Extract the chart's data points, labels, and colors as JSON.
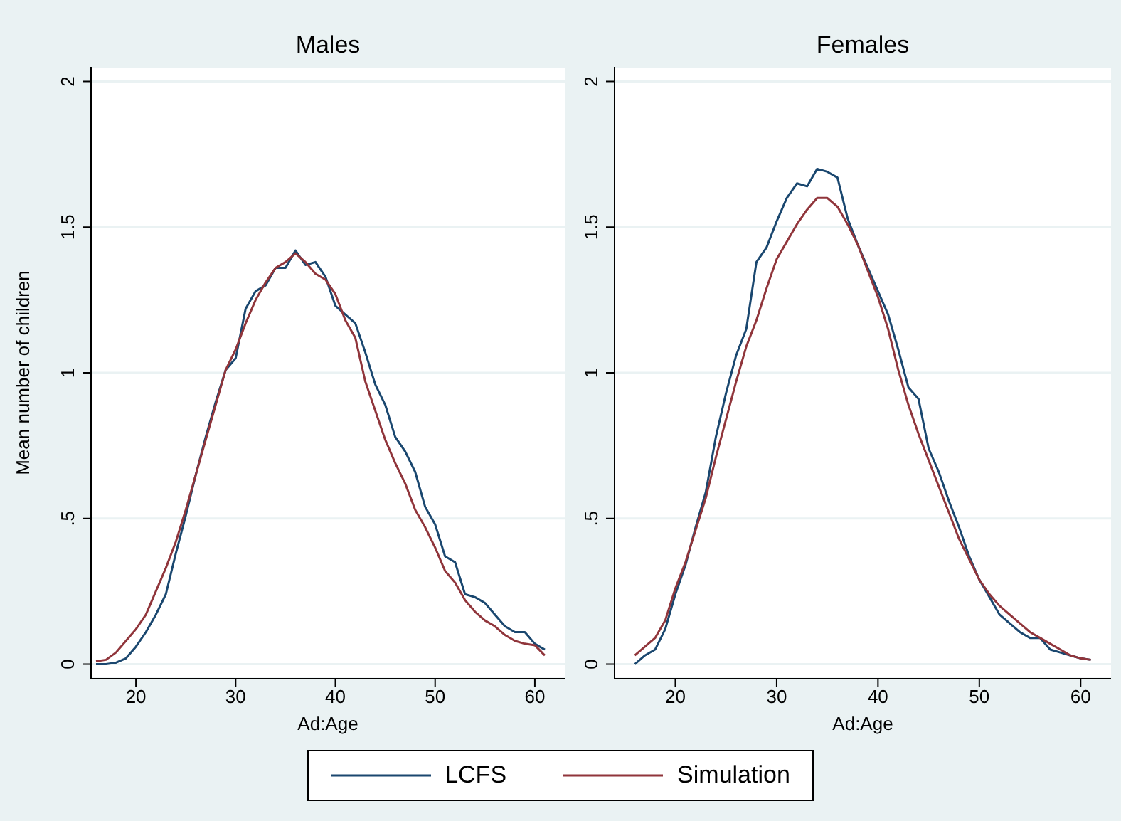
{
  "chart_data": [
    {
      "type": "line",
      "title": "Males",
      "xlabel": "Ad:Age",
      "ylabel": "Mean number of children",
      "x": [
        16,
        17,
        18,
        19,
        20,
        21,
        22,
        23,
        24,
        25,
        26,
        27,
        28,
        29,
        30,
        31,
        32,
        33,
        34,
        35,
        36,
        37,
        38,
        39,
        40,
        41,
        42,
        43,
        44,
        45,
        46,
        47,
        48,
        49,
        50,
        51,
        52,
        53,
        54,
        55,
        56,
        57,
        58,
        59,
        60,
        61
      ],
      "series": [
        {
          "name": "LCFS",
          "color": "#1a476f",
          "values": [
            0.0,
            0.0,
            0.005,
            0.02,
            0.06,
            0.11,
            0.17,
            0.24,
            0.38,
            0.51,
            0.65,
            0.78,
            0.9,
            1.01,
            1.05,
            1.22,
            1.28,
            1.3,
            1.36,
            1.36,
            1.42,
            1.37,
            1.38,
            1.33,
            1.23,
            1.2,
            1.17,
            1.07,
            0.96,
            0.89,
            0.78,
            0.73,
            0.66,
            0.54,
            0.48,
            0.37,
            0.35,
            0.24,
            0.23,
            0.21,
            0.17,
            0.13,
            0.11,
            0.11,
            0.07,
            0.05
          ]
        },
        {
          "name": "Simulation",
          "color": "#90353b",
          "values": [
            0.01,
            0.015,
            0.04,
            0.08,
            0.12,
            0.17,
            0.25,
            0.33,
            0.42,
            0.53,
            0.65,
            0.77,
            0.89,
            1.01,
            1.08,
            1.17,
            1.25,
            1.31,
            1.36,
            1.38,
            1.41,
            1.38,
            1.34,
            1.32,
            1.27,
            1.18,
            1.12,
            0.97,
            0.87,
            0.77,
            0.69,
            0.62,
            0.53,
            0.47,
            0.4,
            0.32,
            0.28,
            0.22,
            0.18,
            0.15,
            0.13,
            0.1,
            0.08,
            0.07,
            0.065,
            0.03
          ]
        }
      ],
      "xlim": [
        15.5,
        63
      ],
      "xticks": [
        20,
        30,
        40,
        50,
        60
      ],
      "ylim": [
        -0.05,
        2.05
      ],
      "yticks": [
        0,
        {
          "value": 0.5,
          "label": ".5"
        },
        1,
        1.5,
        2
      ],
      "grid": "y",
      "marker": "none",
      "line_style": "solid",
      "legend": "bottom"
    },
    {
      "type": "line",
      "title": "Females",
      "xlabel": "Ad:Age",
      "x": [
        16,
        17,
        18,
        19,
        20,
        21,
        22,
        23,
        24,
        25,
        26,
        27,
        28,
        29,
        30,
        31,
        32,
        33,
        34,
        35,
        36,
        37,
        38,
        39,
        40,
        41,
        42,
        43,
        44,
        45,
        46,
        47,
        48,
        49,
        50,
        51,
        52,
        53,
        54,
        55,
        56,
        57,
        58,
        59,
        60,
        61
      ],
      "series": [
        {
          "color": "#1a476f",
          "values": [
            0.0,
            0.03,
            0.05,
            0.12,
            0.24,
            0.34,
            0.47,
            0.59,
            0.78,
            0.93,
            1.06,
            1.15,
            1.38,
            1.43,
            1.52,
            1.6,
            1.65,
            1.64,
            1.7,
            1.69,
            1.67,
            1.53,
            1.44,
            1.36,
            1.28,
            1.2,
            1.08,
            0.95,
            0.91,
            0.74,
            0.66,
            0.56,
            0.47,
            0.37,
            0.29,
            0.23,
            0.17,
            0.14,
            0.11,
            0.09,
            0.09,
            0.05,
            0.04,
            0.03,
            0.02,
            0.015
          ]
        },
        {
          "color": "#90353b",
          "values": [
            0.03,
            0.06,
            0.09,
            0.15,
            0.26,
            0.35,
            0.46,
            0.57,
            0.71,
            0.84,
            0.97,
            1.09,
            1.18,
            1.29,
            1.39,
            1.45,
            1.51,
            1.56,
            1.6,
            1.6,
            1.57,
            1.51,
            1.44,
            1.35,
            1.26,
            1.15,
            1.01,
            0.89,
            0.79,
            0.7,
            0.61,
            0.52,
            0.43,
            0.36,
            0.29,
            0.24,
            0.2,
            0.17,
            0.14,
            0.11,
            0.09,
            0.07,
            0.05,
            0.03,
            0.02,
            0.015
          ]
        }
      ],
      "xlim": [
        14,
        63
      ],
      "xticks": [
        20,
        30,
        40,
        50,
        60
      ],
      "ylim": [
        -0.05,
        2.05
      ],
      "yticks": [
        0,
        {
          "value": 0.5,
          "label": ".5"
        },
        1,
        1.5,
        2
      ],
      "grid": "y",
      "marker": "none",
      "line_style": "solid"
    }
  ]
}
